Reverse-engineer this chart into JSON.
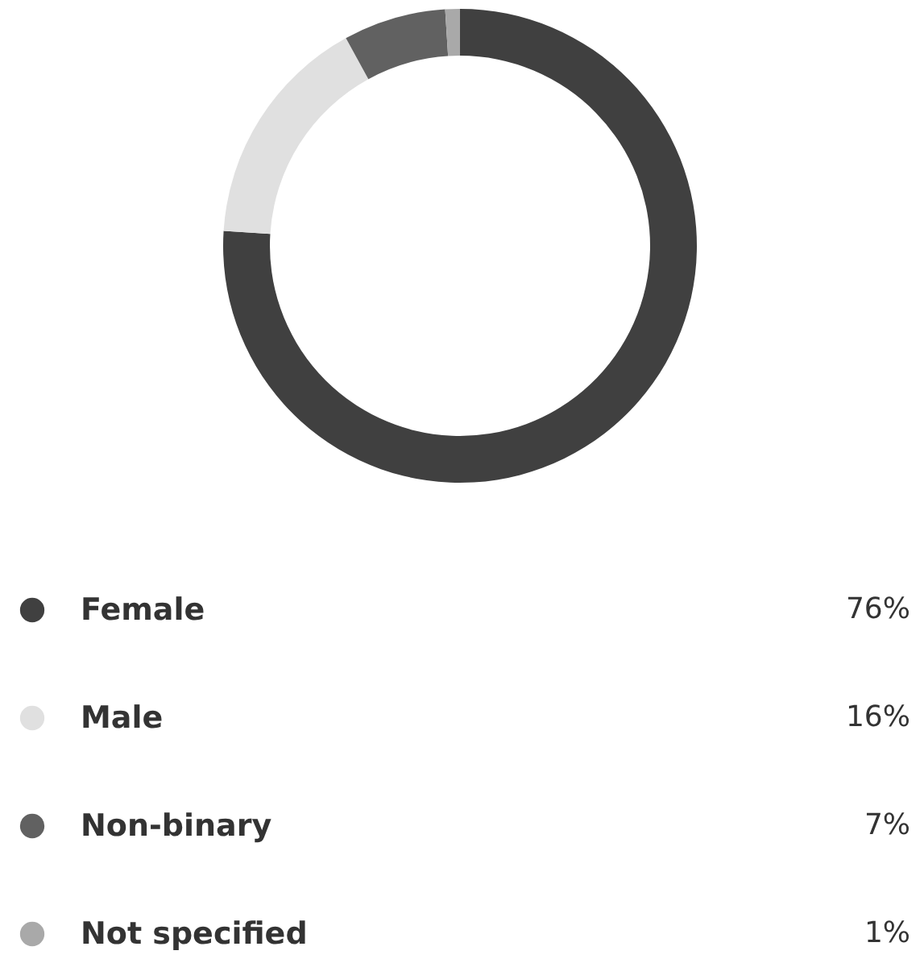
{
  "chart_data": {
    "type": "donut",
    "categories": [
      "Female",
      "Male",
      "Non-binary",
      "Not specified"
    ],
    "values": [
      76,
      16,
      7,
      1
    ],
    "colors": [
      "#404040",
      "#e0e0e0",
      "#616161",
      "#a9a9a9"
    ],
    "value_labels": [
      "76%",
      "16%",
      "7%",
      "1%"
    ],
    "legend": "bottom"
  }
}
